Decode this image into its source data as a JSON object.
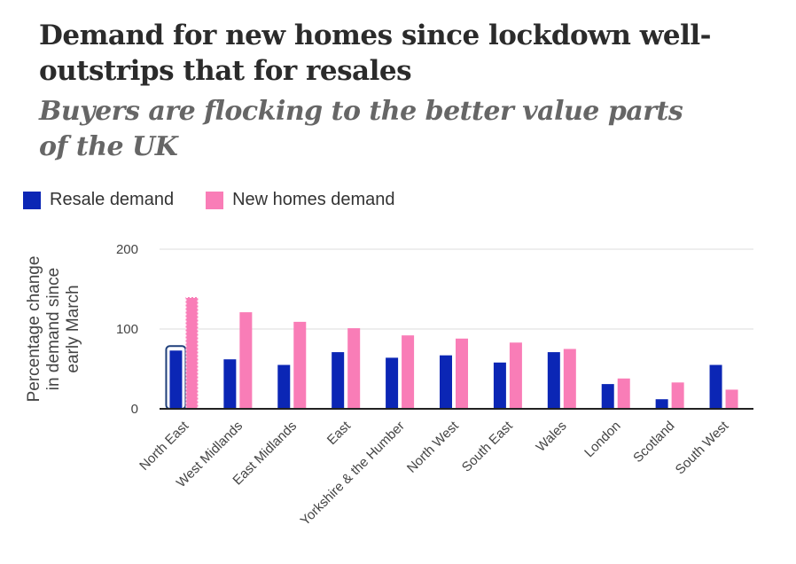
{
  "title": "Demand for new homes since lockdown well-outstrips that for resales",
  "subtitle": "Buyers are flocking to the better value parts of the UK",
  "colors": {
    "resale": "#0b26b5",
    "new_homes": "#f97db7",
    "grid": "#dddddd",
    "axis": "#222222",
    "highlight": "#1f3f7a"
  },
  "legend": [
    {
      "name": "Resale demand",
      "color": "#0b26b5"
    },
    {
      "name": "New homes demand",
      "color": "#f97db7"
    }
  ],
  "chart_data": {
    "type": "bar",
    "title": "Demand for new homes since lockdown well-outstrips that for resales",
    "subtitle": "Buyers are flocking to the better value parts of the UK",
    "ylabel_lines": [
      "Percentage change",
      "in demand since",
      "early March"
    ],
    "xlabel": "",
    "ylim": [
      0,
      200
    ],
    "yticks": [
      0,
      100,
      200
    ],
    "grid": true,
    "legend_position": "top-left",
    "highlighted_category": "North East",
    "categories": [
      "North East",
      "West Midlands",
      "East Midlands",
      "East",
      "Yorkshire & the Humber",
      "North West",
      "South East",
      "Wales",
      "London",
      "Scotland",
      "South West"
    ],
    "series": [
      {
        "name": "Resale demand",
        "values": [
          73,
          62,
          55,
          71,
          64,
          67,
          58,
          71,
          31,
          12,
          55
        ]
      },
      {
        "name": "New homes demand",
        "values": [
          140,
          121,
          109,
          101,
          92,
          88,
          83,
          75,
          38,
          33,
          24
        ]
      }
    ]
  }
}
